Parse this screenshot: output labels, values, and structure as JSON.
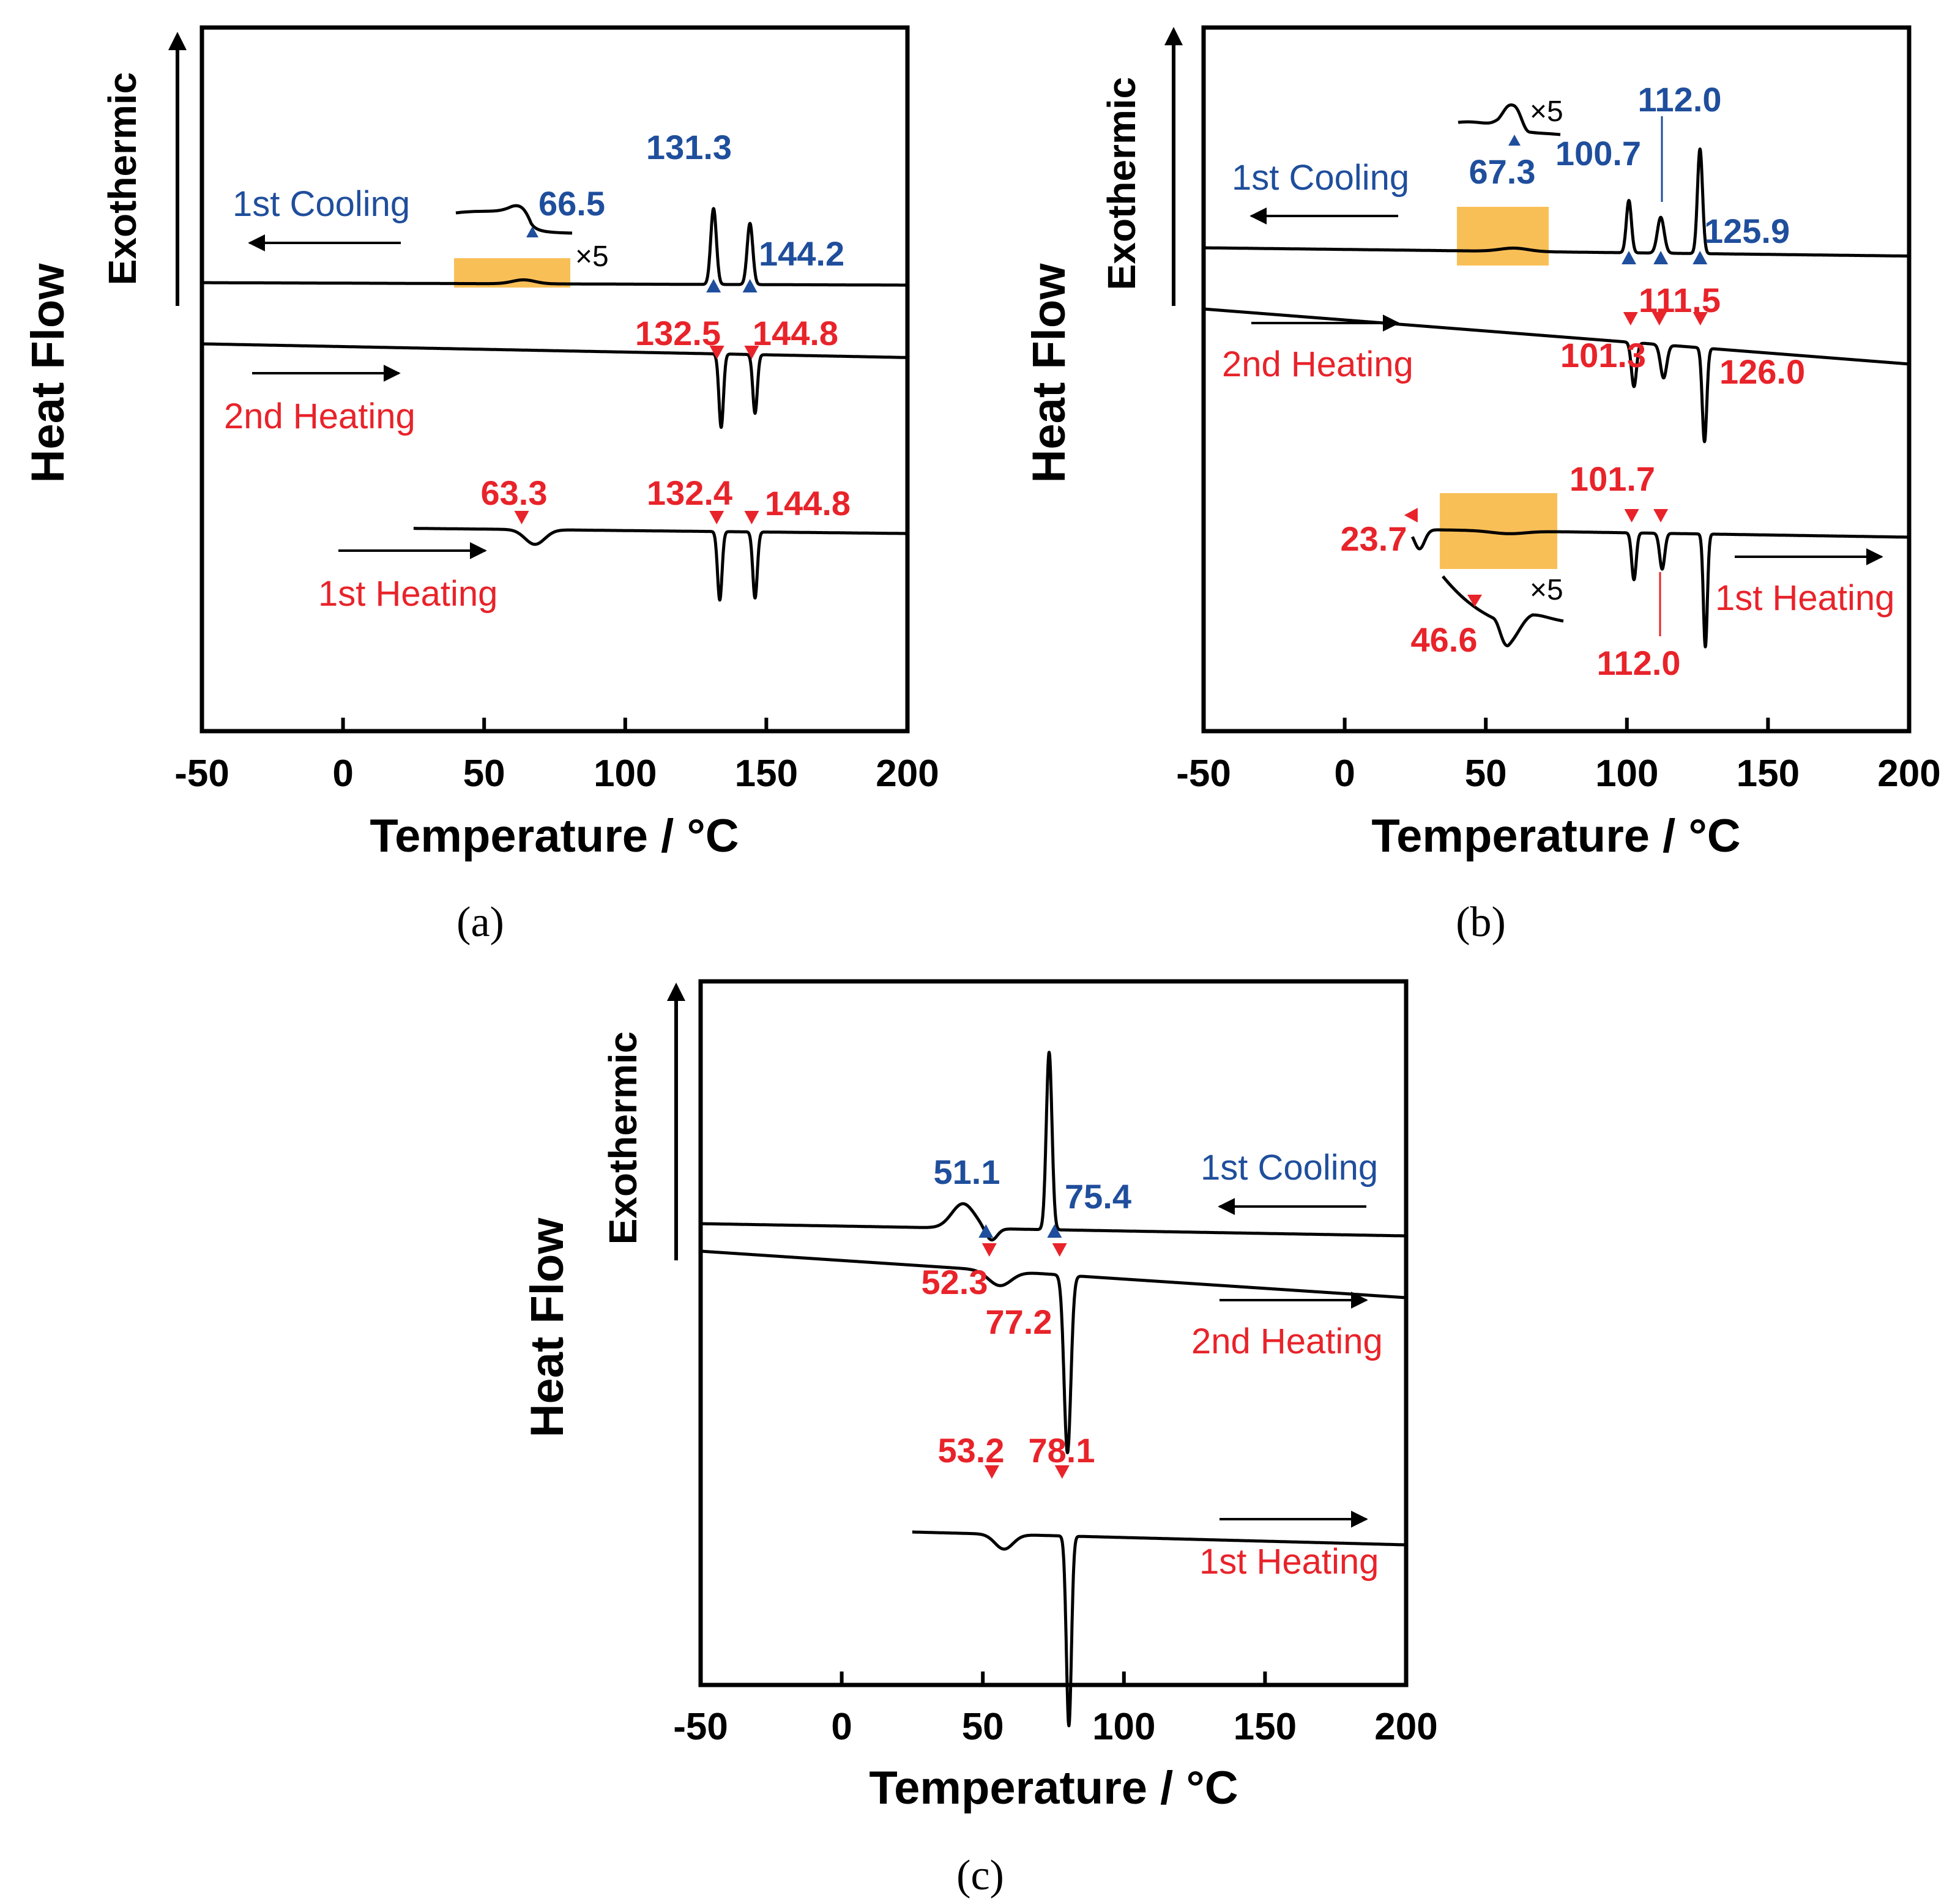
{
  "colors": {
    "cooling": "#1f4e9c",
    "heating": "#e8232a",
    "highlight": "#f9bf57",
    "curve": "#000000"
  },
  "chart_data": [
    {
      "type": "line",
      "panel": "(a)",
      "xlabel": "Temperature / °C",
      "ylabel": "Heat Flow",
      "exo_label": "Exothermic",
      "xlim": [
        -50,
        200
      ],
      "xticks": [
        "-50",
        "0",
        "50",
        "100",
        "150",
        "200"
      ],
      "magnification": "×5",
      "curves": [
        {
          "name": "1st Cooling",
          "kind": "cooling",
          "x_range": [
            -50,
            200
          ],
          "baseline": [
            1.0,
            0.95
          ],
          "peaks": [
            {
              "x": 64,
              "h": 0.08,
              "w": 4
            },
            {
              "x": 131.3,
              "h": 1.55,
              "w": 1.0
            },
            {
              "x": 144.2,
              "h": 1.25,
              "w": 1.0
            }
          ],
          "markers": [
            {
              "x": 66.5,
              "label": "66.5"
            },
            {
              "x": 131.3,
              "label": "131.3"
            },
            {
              "x": 144.2,
              "label": "144.2"
            }
          ]
        },
        {
          "name": "2nd Heating",
          "kind": "heating",
          "x_range": [
            -50,
            200
          ],
          "baseline": [
            0.0,
            -0.28
          ],
          "peaks": [
            {
              "x": 134.0,
              "h": -1.5,
              "w": 0.8
            },
            {
              "x": 146.0,
              "h": -1.2,
              "w": 0.8
            }
          ],
          "markers": [
            {
              "x": 132.5,
              "label": "132.5"
            },
            {
              "x": 144.8,
              "label": "144.8"
            }
          ]
        },
        {
          "name": "1st Heating",
          "kind": "heating",
          "x_range": [
            25,
            200
          ],
          "baseline": [
            -1.4,
            -1.55
          ],
          "peaks": [
            {
              "x": 68,
              "h": -0.3,
              "w": 3.5
            },
            {
              "x": 133.5,
              "h": -1.4,
              "w": 0.8
            },
            {
              "x": 146.0,
              "h": -1.35,
              "w": 0.8
            }
          ],
          "markers": [
            {
              "x": 63.3,
              "label": "63.3"
            },
            {
              "x": 132.4,
              "label": "132.4"
            },
            {
              "x": 144.8,
              "label": "144.8"
            }
          ]
        }
      ]
    },
    {
      "type": "line",
      "panel": "(b)",
      "xlabel": "Temperature / °C",
      "ylabel": "Heat Flow",
      "exo_label": "Exothermic",
      "xlim": [
        -50,
        200
      ],
      "xticks": [
        "-50",
        "0",
        "50",
        "100",
        "150",
        "200"
      ],
      "magnification": "×5",
      "curves": [
        {
          "name": "1st Cooling",
          "kind": "cooling",
          "x_range": [
            -50,
            200
          ],
          "baseline": [
            1.0,
            0.85
          ],
          "peaks": [
            {
              "x": 60,
              "h": 0.06,
              "w": 5
            },
            {
              "x": 100.7,
              "h": 0.95,
              "w": 0.9
            },
            {
              "x": 112.0,
              "h": 0.65,
              "w": 1.2
            },
            {
              "x": 125.9,
              "h": 1.9,
              "w": 0.9
            }
          ],
          "markers": [
            {
              "x": 67.3,
              "label": "67.3"
            },
            {
              "x": 100.7,
              "label": "100.7"
            },
            {
              "x": 112.0,
              "label": "112.0"
            },
            {
              "x": 125.9,
              "label": "125.9"
            }
          ]
        },
        {
          "name": "2nd Heating",
          "kind": "heating",
          "x_range": [
            -50,
            200
          ],
          "baseline": [
            0.2,
            -0.8
          ],
          "peaks": [
            {
              "x": 102.5,
              "h": -0.8,
              "w": 0.9
            },
            {
              "x": 113.0,
              "h": -0.6,
              "w": 1.1
            },
            {
              "x": 127.5,
              "h": -1.7,
              "w": 0.8
            }
          ],
          "markers": [
            {
              "x": 101.3,
              "label": "101.3"
            },
            {
              "x": 111.5,
              "label": "111.5"
            },
            {
              "x": 126.0,
              "label": "126.0"
            }
          ]
        },
        {
          "name": "1st Heating",
          "kind": "heating",
          "x_range": [
            24,
            200
          ],
          "baseline": [
            -1.85,
            -2.05
          ],
          "peaks": [
            {
              "x": 26.5,
              "h": -0.35,
              "w": 1.8
            },
            {
              "x": 58,
              "h": -0.05,
              "w": 6
            },
            {
              "x": 102.5,
              "h": -0.85,
              "w": 0.8
            },
            {
              "x": 112.5,
              "h": -0.65,
              "w": 0.9
            },
            {
              "x": 127.8,
              "h": -2.05,
              "w": 0.7
            }
          ],
          "markers": [
            {
              "x": 23.7,
              "label": "23.7"
            },
            {
              "x": 46.6,
              "label": "46.6"
            },
            {
              "x": 101.7,
              "label": "101.7"
            },
            {
              "x": 112.0,
              "label": "112.0"
            }
          ]
        }
      ]
    },
    {
      "type": "line",
      "panel": "(c)",
      "xlabel": "Temperature / °C",
      "ylabel": "Heat Flow",
      "exo_label": "Exothermic",
      "xlim": [
        -50,
        200
      ],
      "xticks": [
        "-50",
        "0",
        "50",
        "100",
        "150",
        "200"
      ],
      "curves": [
        {
          "name": "1st Cooling",
          "kind": "cooling",
          "x_range": [
            -50,
            200
          ],
          "baseline": [
            1.0,
            0.9
          ],
          "peaks": [
            {
              "x": 43,
              "h": 0.2,
              "w": 4
            },
            {
              "x": 53,
              "h": -0.1,
              "w": 2
            },
            {
              "x": 73.5,
              "h": 1.45,
              "w": 1.0
            }
          ],
          "markers": [
            {
              "x": 51.1,
              "label": "51.1"
            },
            {
              "x": 75.4,
              "label": "75.4"
            }
          ]
        },
        {
          "name": "2nd Heating",
          "kind": "heating",
          "x_range": [
            -50,
            200
          ],
          "baseline": [
            0.85,
            0.47
          ],
          "peaks": [
            {
              "x": 56,
              "h": -0.12,
              "w": 4
            },
            {
              "x": 80,
              "h": -1.45,
              "w": 1.2
            }
          ],
          "markers": [
            {
              "x": 52.3,
              "label": "52.3"
            },
            {
              "x": 77.2,
              "label": "77.2"
            }
          ]
        },
        {
          "name": "1st Heating",
          "kind": "heating",
          "x_range": [
            25,
            200
          ],
          "baseline": [
            -0.95,
            -1.1
          ],
          "peaks": [
            {
              "x": 57.5,
              "h": -0.12,
              "w": 3.2
            },
            {
              "x": 80.5,
              "h": -1.55,
              "w": 0.9
            }
          ],
          "markers": [
            {
              "x": 53.2,
              "label": "53.2"
            },
            {
              "x": 78.1,
              "label": "78.1"
            }
          ]
        }
      ]
    }
  ]
}
